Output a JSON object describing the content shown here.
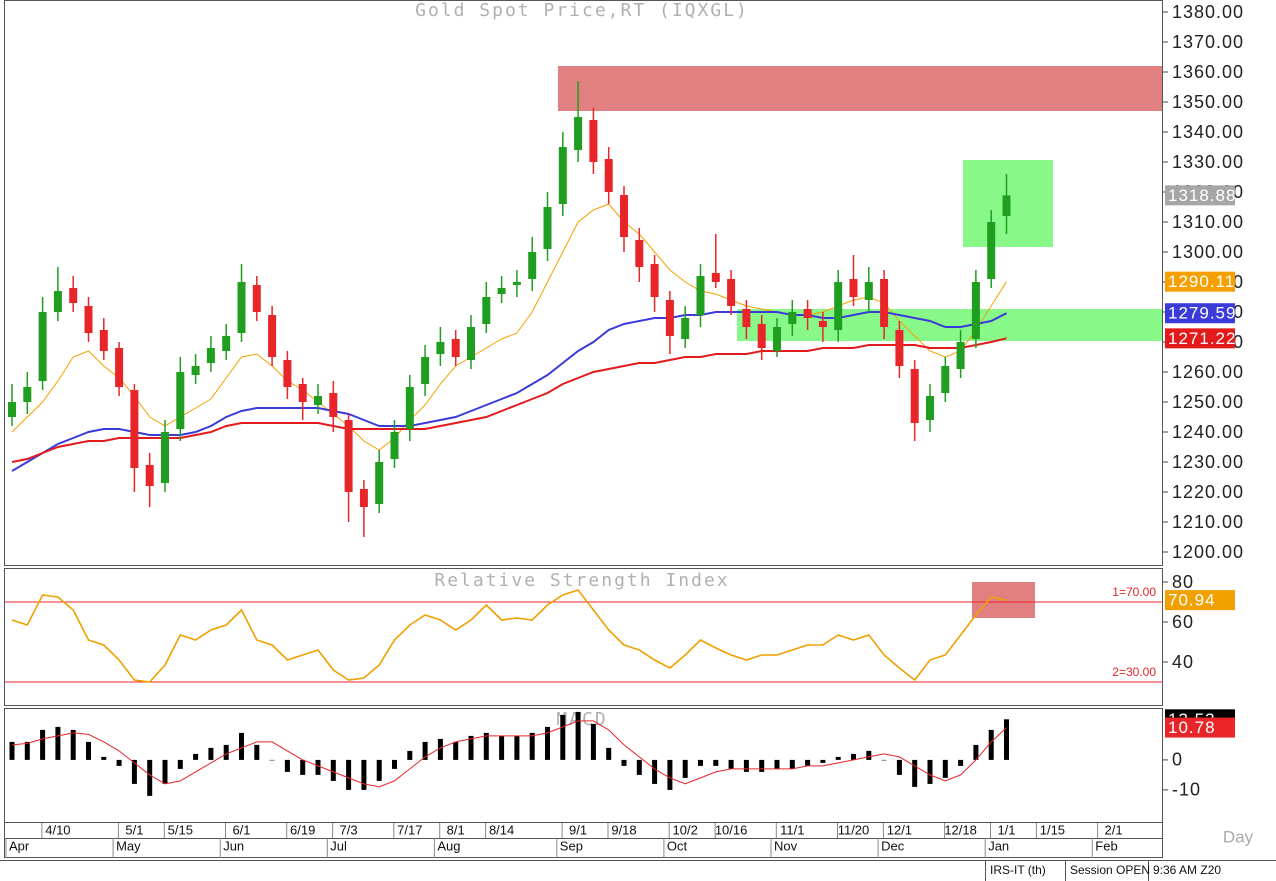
{
  "chart_data": [
    {
      "type": "candlestick",
      "title": "Gold Spot Price,RT (IQXGL)",
      "xlabel": "Day",
      "categories": [
        null,
        null,
        null,
        "4/10",
        null,
        null,
        null,
        null,
        "5/1",
        null,
        null,
        "5/15",
        null,
        null,
        null,
        "6/1",
        null,
        null,
        null,
        "6/19",
        null,
        null,
        "7/3",
        null,
        null,
        null,
        "7/17",
        null,
        null,
        "8/1",
        null,
        null,
        "8/14",
        null,
        null,
        null,
        null,
        "9/1",
        null,
        null,
        "9/18",
        null,
        null,
        null,
        "10/2",
        null,
        null,
        "10/16",
        null,
        null,
        null,
        "11/1",
        null,
        null,
        null,
        "11/20",
        null,
        null,
        "12/1",
        null,
        null,
        null,
        "12/18",
        null,
        null,
        "1/1",
        null,
        null,
        "1/15",
        null,
        null,
        null,
        "2/1",
        null
      ],
      "months": [
        "Apr",
        null,
        null,
        null,
        null,
        null,
        null,
        "May",
        null,
        null,
        null,
        null,
        null,
        null,
        "Jun",
        null,
        null,
        null,
        null,
        null,
        null,
        "Jul",
        null,
        null,
        null,
        null,
        null,
        null,
        "Aug",
        null,
        null,
        null,
        null,
        null,
        null,
        null,
        "Sep",
        null,
        null,
        null,
        null,
        null,
        null,
        "Oct",
        null,
        null,
        null,
        null,
        null,
        null,
        "Nov",
        null,
        null,
        null,
        null,
        null,
        null,
        "Dec",
        null,
        null,
        null,
        null,
        null,
        null,
        "Jan",
        null,
        null,
        null,
        null,
        null,
        null,
        "Feb",
        null,
        null
      ],
      "open": [
        1245,
        1250,
        1257,
        1280,
        1288,
        1282,
        1274,
        1268,
        1254,
        1229,
        1223,
        1241,
        1259,
        1263,
        1267,
        1273,
        1289,
        1279,
        1264,
        1256,
        1249,
        1253,
        1244,
        1221,
        1216,
        1231,
        1241,
        1256,
        1266,
        1271,
        1264,
        1276,
        1286,
        1289,
        1291,
        1301,
        1316,
        1334,
        1344,
        1331,
        1319,
        1304,
        1296,
        1284,
        1271,
        1279,
        1293,
        1291,
        1281,
        1276,
        1267,
        1276,
        1281,
        1277,
        1274,
        1291,
        1284,
        1291,
        1274,
        1261,
        1244,
        1253,
        1261,
        1271,
        1291,
        1312,
        null,
        null,
        null,
        null,
        null,
        null,
        null,
        null
      ],
      "high": [
        1256,
        1260,
        1285,
        1295,
        1292,
        1285,
        1278,
        1270,
        1256,
        1233,
        1244,
        1265,
        1266,
        1272,
        1276,
        1296,
        1292,
        1282,
        1267,
        1258,
        1256,
        1257,
        1246,
        1224,
        1234,
        1244,
        1259,
        1269,
        1275,
        1274,
        1279,
        1290,
        1292,
        1294,
        1305,
        1320,
        1340,
        1357,
        1348,
        1335,
        1322,
        1308,
        1299,
        1287,
        1282,
        1296,
        1306,
        1294,
        1284,
        1279,
        1278,
        1284,
        1284,
        1280,
        1294,
        1299,
        1295,
        1294,
        1277,
        1264,
        1256,
        1265,
        1274,
        1294,
        1314,
        1326,
        null,
        null,
        null,
        null,
        null,
        null,
        null,
        null
      ],
      "low": [
        1242,
        1246,
        1254,
        1277,
        1280,
        1270,
        1264,
        1252,
        1220,
        1215,
        1220,
        1237,
        1256,
        1260,
        1264,
        1270,
        1277,
        1262,
        1251,
        1244,
        1246,
        1240,
        1210,
        1205,
        1213,
        1228,
        1237,
        1252,
        1262,
        1262,
        1261,
        1273,
        1283,
        1285,
        1287,
        1297,
        1312,
        1330,
        1326,
        1316,
        1300,
        1290,
        1280,
        1266,
        1268,
        1275,
        1288,
        1279,
        1271,
        1264,
        1265,
        1272,
        1274,
        1270,
        1270,
        1282,
        1280,
        1271,
        1258,
        1237,
        1240,
        1250,
        1258,
        1268,
        1288,
        1306,
        null,
        null,
        null,
        null,
        null,
        null,
        null,
        null
      ],
      "close": [
        1250,
        1255,
        1280,
        1287,
        1283,
        1273,
        1267,
        1255,
        1228,
        1222,
        1240,
        1260,
        1262,
        1268,
        1272,
        1290,
        1280,
        1265,
        1255,
        1250,
        1252,
        1245,
        1220,
        1215,
        1230,
        1240,
        1255,
        1265,
        1270,
        1265,
        1275,
        1285,
        1288,
        1290,
        1300,
        1315,
        1335,
        1345,
        1330,
        1320,
        1305,
        1295,
        1285,
        1272,
        1278,
        1292,
        1290,
        1282,
        1275,
        1268,
        1275,
        1280,
        1278,
        1275,
        1290,
        1285,
        1290,
        1275,
        1262,
        1243,
        1252,
        1262,
        1270,
        1290,
        1310,
        1318.88,
        null,
        null,
        null,
        null,
        null,
        null,
        null,
        null
      ],
      "up_color": "#1f9e1f",
      "down_color": "#e8262a",
      "last_color": "#a6a6a6",
      "series": [
        {
          "color": "#f5a000",
          "values": [
            1240,
            1245,
            1250,
            1257,
            1265,
            1267,
            1262,
            1258,
            1252,
            1245,
            1242,
            1245,
            1248,
            1251,
            1258,
            1265,
            1266,
            1262,
            1257,
            1254,
            1250,
            1246,
            1242,
            1237,
            1234,
            1238,
            1244,
            1249,
            1256,
            1262,
            1265,
            1268,
            1271,
            1273,
            1280,
            1290,
            1300,
            1310,
            1314,
            1316,
            1310,
            1306,
            1300,
            1294,
            1290,
            1287,
            1286,
            1284,
            1282,
            1281,
            1280,
            1279,
            1279,
            1280,
            1282,
            1284,
            1285,
            1283,
            1277,
            1272,
            1267,
            1265,
            1267,
            1274,
            1282,
            1290.11,
            null,
            null,
            null,
            null,
            null,
            null,
            null,
            null
          ]
        },
        {
          "color": "#3b3bd9",
          "values": [
            1227,
            1230,
            1233,
            1236,
            1238,
            1240,
            1241,
            1241,
            1240,
            1239,
            1239,
            1239,
            1240,
            1242,
            1245,
            1247,
            1248,
            1248,
            1248,
            1248,
            1248,
            1247,
            1246,
            1244,
            1242,
            1242,
            1242,
            1243,
            1244,
            1245,
            1247,
            1249,
            1251,
            1253,
            1256,
            1259,
            1263,
            1267,
            1270,
            1274,
            1276,
            1277,
            1278,
            1278,
            1279,
            1279,
            1280,
            1280,
            1280,
            1280,
            1280,
            1279,
            1279,
            1278,
            1278,
            1279,
            1280,
            1280,
            1279,
            1278,
            1277,
            1275,
            1275,
            1276,
            1277,
            1279.59,
            null,
            null,
            null,
            null,
            null,
            null,
            null,
            null
          ]
        },
        {
          "color": "#e31a1c",
          "values": [
            1230,
            1231,
            1233,
            1235,
            1236,
            1237,
            1237,
            1238,
            1238,
            1238,
            1238,
            1238,
            1239,
            1240,
            1242,
            1243,
            1243,
            1243,
            1243,
            1243,
            1243,
            1242,
            1241,
            1241,
            1241,
            1241,
            1241,
            1241,
            1242,
            1243,
            1244,
            1245,
            1247,
            1249,
            1251,
            1253,
            1256,
            1258,
            1260,
            1261,
            1262,
            1263,
            1263,
            1264,
            1265,
            1265,
            1266,
            1266,
            1266,
            1267,
            1267,
            1267,
            1267,
            1268,
            1268,
            1268,
            1269,
            1269,
            1269,
            1269,
            1268,
            1268,
            1268,
            1269,
            1270,
            1271.22,
            null,
            null,
            null,
            null,
            null,
            null,
            null,
            null
          ]
        }
      ],
      "ylim": [
        1195.67,
        1384
      ],
      "yticks": [
        {
          "value": 1200,
          "label": "1200.00"
        },
        {
          "value": 1210,
          "label": "1210.00"
        },
        {
          "value": 1220,
          "label": "1220.00"
        },
        {
          "value": 1230,
          "label": "1230.00"
        },
        {
          "value": 1240,
          "label": "1240.00"
        },
        {
          "value": 1250,
          "label": "1250.00"
        },
        {
          "value": 1260,
          "label": "1260.00"
        },
        {
          "value": 1270,
          "label": "1270.00"
        },
        {
          "value": 1280,
          "label": "1280.00"
        },
        {
          "value": 1290,
          "label": "1290.00"
        },
        {
          "value": 1300,
          "label": "1300.00"
        },
        {
          "value": 1310,
          "label": "1310.00"
        },
        {
          "value": 1320,
          "label": "1320.00"
        },
        {
          "value": 1330,
          "label": "1330.00"
        },
        {
          "value": 1340,
          "label": "1340.00"
        },
        {
          "value": 1350,
          "label": "1350.00"
        },
        {
          "value": 1360,
          "label": "1360.00"
        },
        {
          "value": 1370,
          "label": "1370.00"
        },
        {
          "value": 1380,
          "label": "1380.00"
        }
      ],
      "grid": false
    },
    {
      "type": "line",
      "title": "Relative Strength Index",
      "color": "#f0a000",
      "values": [
        61,
        58.5,
        73.5,
        72.5,
        66,
        51,
        48.5,
        41,
        31,
        30,
        38.5,
        53.5,
        51,
        56,
        58.5,
        66,
        51,
        48.5,
        41,
        43.5,
        46,
        36,
        31,
        32,
        38.5,
        51,
        58.5,
        63.5,
        61,
        56,
        61,
        68.5,
        61,
        62,
        61,
        68.5,
        73.5,
        76,
        66,
        56,
        48.5,
        46,
        41,
        37,
        43.5,
        51,
        47,
        43.5,
        41,
        43.5,
        43.5,
        46,
        48.5,
        48.5,
        53.5,
        51,
        53.5,
        43.5,
        37,
        31,
        41,
        43.5,
        53.5,
        63.5,
        72.5,
        70.94,
        null,
        null,
        null,
        null,
        null,
        null,
        null,
        null
      ],
      "ref_lines": [
        {
          "value": 70,
          "label": "1=70.00"
        },
        {
          "value": 30,
          "label": "2=30.00"
        }
      ],
      "ref_color": "#e8262a",
      "ylim": [
        18.5,
        87
      ],
      "yticks": [
        40,
        60,
        80
      ]
    },
    {
      "type": "bar",
      "title": "MACD",
      "color": "#000000",
      "values": [
        6,
        6,
        10,
        11,
        10,
        6,
        1,
        -2,
        -8,
        -12,
        -8,
        -3,
        2,
        4,
        5,
        9,
        5,
        0,
        -4,
        -5,
        -5,
        -7,
        -10,
        -10,
        -7,
        -3,
        3,
        6,
        7,
        6,
        8,
        9,
        8,
        8,
        9,
        11,
        15,
        16,
        12,
        4,
        -2,
        -5,
        -8,
        -10,
        -6,
        -2,
        -2,
        -3,
        -4,
        -4,
        -3,
        -3,
        -2,
        -1,
        1,
        2,
        3,
        0,
        -5,
        -9,
        -8,
        -6,
        -2,
        5,
        10,
        13.53,
        null,
        null,
        null,
        null,
        null,
        null,
        null,
        null
      ],
      "signal": {
        "color": "#e8262a",
        "values": [
          5,
          5.5,
          7,
          8,
          9,
          8.5,
          6,
          3,
          -1,
          -5,
          -8,
          -7,
          -4,
          -1,
          2,
          4,
          6,
          6,
          3,
          0,
          -2,
          -4,
          -6,
          -8,
          -9,
          -7,
          -3,
          1,
          4,
          6,
          7,
          8,
          8,
          8,
          8,
          9,
          11,
          13,
          13,
          10,
          5,
          1,
          -3,
          -6,
          -8,
          -6,
          -4,
          -3,
          -3,
          -3,
          -3,
          -3,
          -2,
          -2,
          -1,
          0,
          1,
          2,
          1,
          -2,
          -5,
          -7,
          -5,
          0,
          6,
          10.78,
          null,
          null,
          null,
          null,
          null,
          null,
          null,
          null
        ]
      },
      "ylim": [
        -20.7,
        17.3
      ],
      "yticks": [
        -10,
        0
      ]
    }
  ],
  "status_bar": [
    "IRS-IT (th)",
    "Session OPEN",
    "9:36 AM Z20"
  ]
}
